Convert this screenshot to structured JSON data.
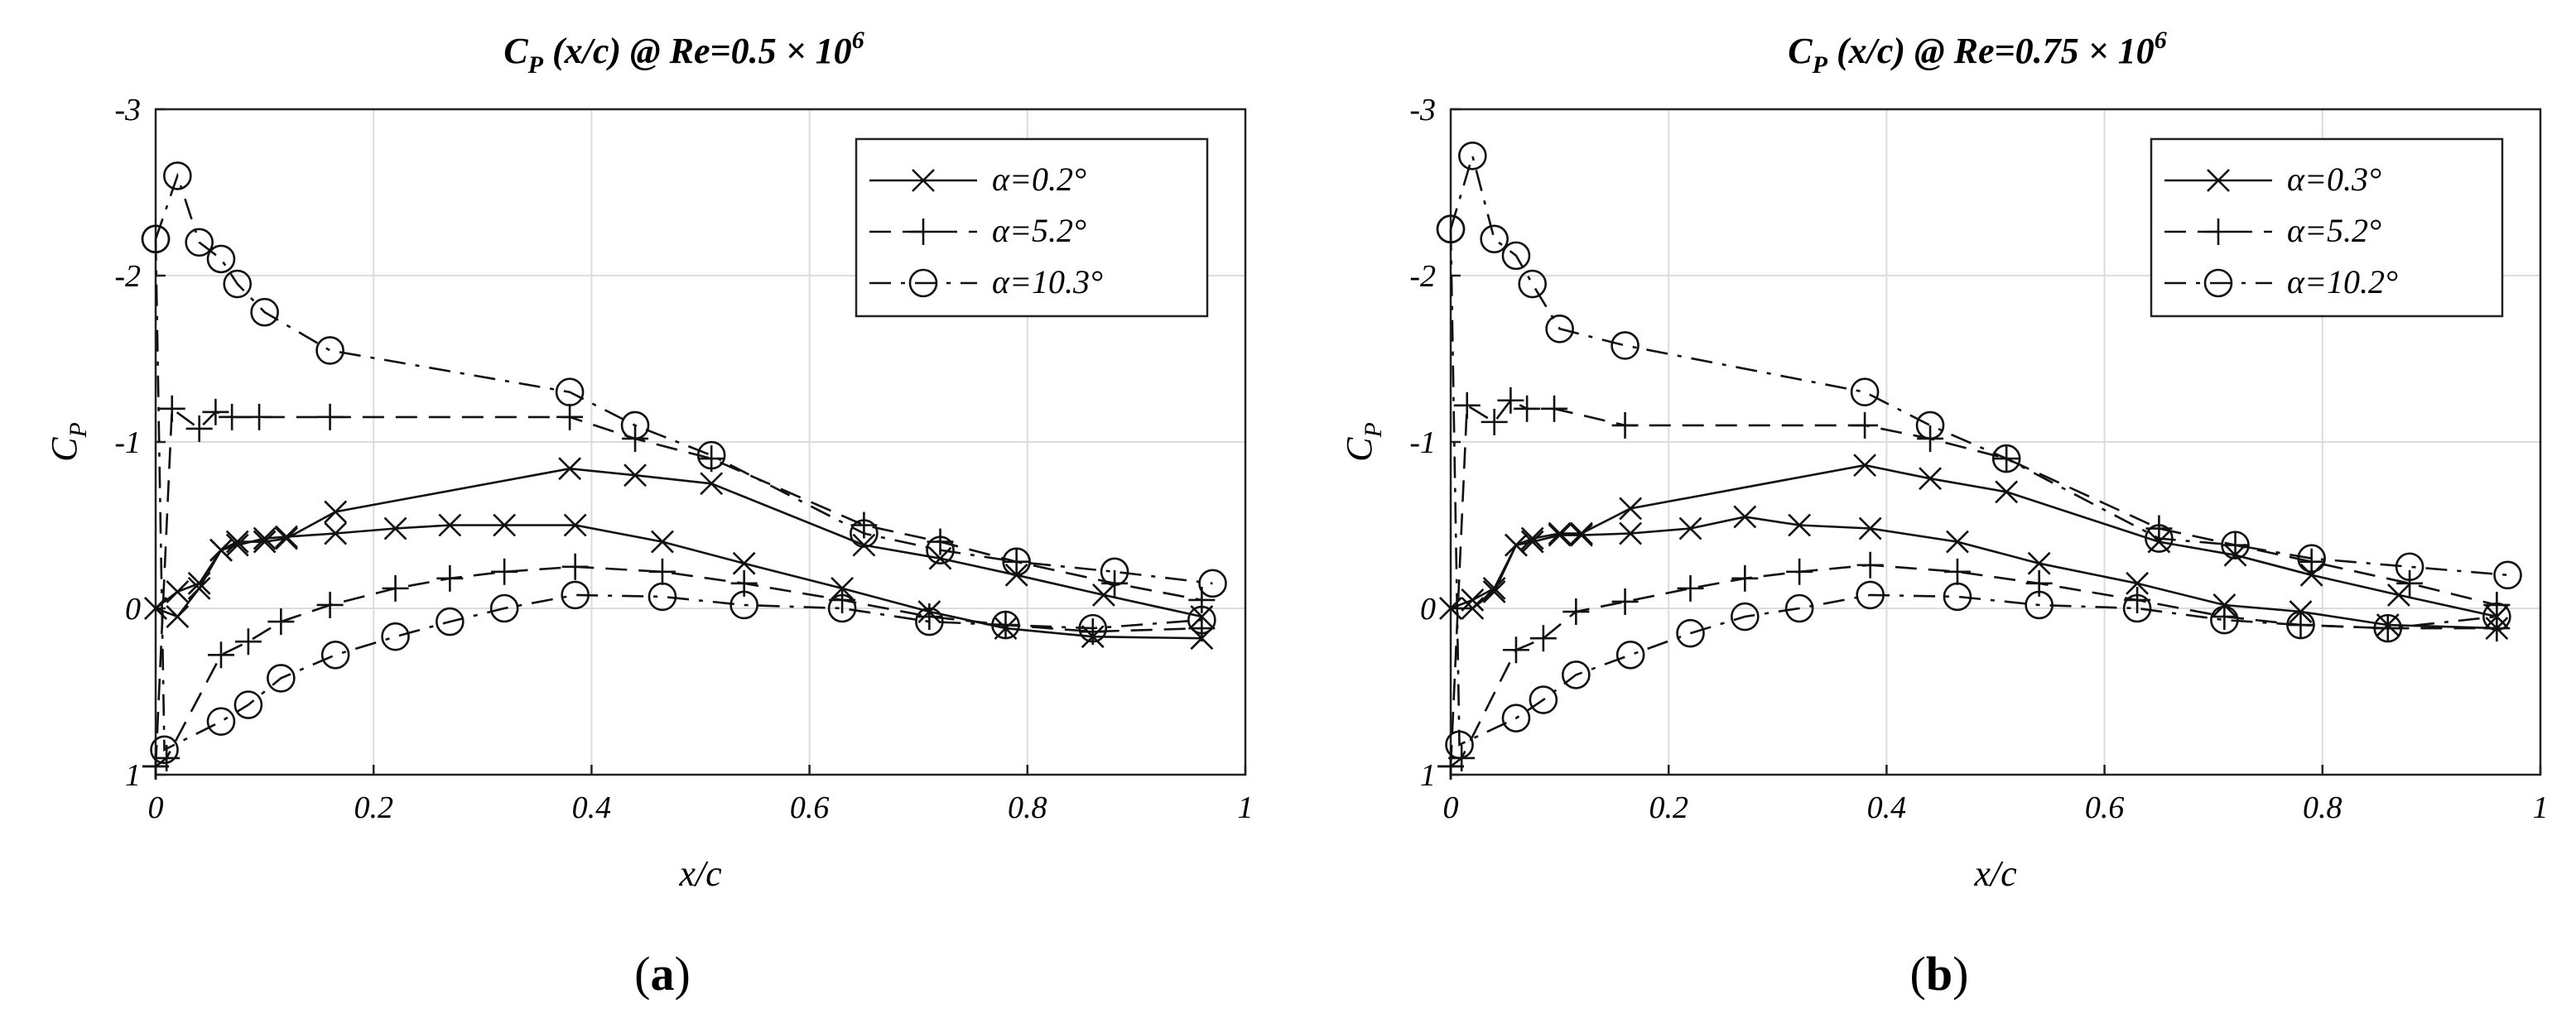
{
  "figure": {
    "panel_labels": [
      {
        "open": "(",
        "letter": "a",
        "close": ")"
      },
      {
        "open": "(",
        "letter": "b",
        "close": ")"
      }
    ]
  },
  "chart_data": [
    {
      "type": "line",
      "title": {
        "cp": "C",
        "p": "P",
        "mid": " (x/c) @ Re=0.5 × 10",
        "exp": "6"
      },
      "xlabel": "x/c",
      "ylabel": {
        "c": "C",
        "p": "P"
      },
      "xlim": [
        0,
        1
      ],
      "ylim": [
        1,
        -3
      ],
      "xticks": [
        "0",
        "0.2",
        "0.4",
        "0.6",
        "0.8",
        "1"
      ],
      "yticks": [
        "-3",
        "-2",
        "-1",
        "0",
        "1"
      ],
      "grid": true,
      "legend_position": "top-right",
      "series": [
        {
          "name": "α=0.2°",
          "marker": "x",
          "dash": "solid",
          "upper": {
            "x": [
              0.0,
              0.02,
              0.04,
              0.06,
              0.075,
              0.1,
              0.12,
              0.165,
              0.38,
              0.44,
              0.51,
              0.65,
              0.72,
              0.79,
              0.87,
              0.96
            ],
            "y": [
              0.0,
              -0.1,
              -0.15,
              -0.35,
              -0.4,
              -0.4,
              -0.42,
              -0.58,
              -0.84,
              -0.8,
              -0.75,
              -0.38,
              -0.3,
              -0.2,
              -0.08,
              0.05
            ]
          },
          "lower": {
            "x": [
              0.0,
              0.02,
              0.04,
              0.06,
              0.075,
              0.1,
              0.12,
              0.165,
              0.22,
              0.27,
              0.32,
              0.385,
              0.465,
              0.54,
              0.63,
              0.71,
              0.78,
              0.86,
              0.96
            ],
            "y": [
              0.0,
              0.05,
              -0.12,
              -0.35,
              -0.38,
              -0.42,
              -0.43,
              -0.45,
              -0.48,
              -0.5,
              -0.5,
              -0.5,
              -0.4,
              -0.27,
              -0.12,
              0.02,
              0.12,
              0.17,
              0.18
            ]
          }
        },
        {
          "name": "α=5.2°",
          "marker": "+",
          "dash": "dashed",
          "upper": {
            "x": [
              0.0,
              0.015,
              0.04,
              0.055,
              0.07,
              0.095,
              0.16,
              0.38,
              0.44,
              0.51,
              0.65,
              0.72,
              0.79,
              0.88,
              0.96
            ],
            "y": [
              0.95,
              -1.2,
              -1.08,
              -1.18,
              -1.15,
              -1.15,
              -1.15,
              -1.15,
              -1.02,
              -0.9,
              -0.5,
              -0.4,
              -0.28,
              -0.15,
              -0.05
            ]
          },
          "lower": {
            "x": [
              0.0,
              0.01,
              0.06,
              0.085,
              0.115,
              0.16,
              0.22,
              0.27,
              0.32,
              0.385,
              0.465,
              0.54,
              0.63,
              0.71,
              0.78,
              0.86,
              0.96
            ],
            "y": [
              0.95,
              0.9,
              0.28,
              0.2,
              0.08,
              -0.02,
              -0.12,
              -0.18,
              -0.22,
              -0.25,
              -0.22,
              -0.15,
              -0.05,
              0.05,
              0.1,
              0.14,
              0.12
            ]
          }
        },
        {
          "name": "α=10.3°",
          "marker": "o",
          "dash": "dashdot",
          "upper": {
            "x": [
              0.0,
              0.02,
              0.04,
              0.06,
              0.075,
              0.1,
              0.16,
              0.38,
              0.44,
              0.51,
              0.65,
              0.72,
              0.79,
              0.88,
              0.97
            ],
            "y": [
              -2.22,
              -2.6,
              -2.2,
              -2.1,
              -1.95,
              -1.78,
              -1.55,
              -1.3,
              -1.1,
              -0.92,
              -0.45,
              -0.35,
              -0.28,
              -0.22,
              -0.15
            ]
          },
          "lower": {
            "x": [
              0.0,
              0.008,
              0.06,
              0.085,
              0.115,
              0.165,
              0.22,
              0.27,
              0.32,
              0.385,
              0.465,
              0.54,
              0.63,
              0.71,
              0.78,
              0.86,
              0.96
            ],
            "y": [
              -2.22,
              0.85,
              0.68,
              0.58,
              0.42,
              0.28,
              0.17,
              0.08,
              0.0,
              -0.08,
              -0.07,
              -0.02,
              0.0,
              0.08,
              0.1,
              0.12,
              0.07
            ]
          }
        }
      ]
    },
    {
      "type": "line",
      "title": {
        "cp": "C",
        "p": "P",
        "mid": " (x/c) @ Re=0.75 × 10",
        "exp": "6"
      },
      "xlabel": "x/c",
      "ylabel": {
        "c": "C",
        "p": "P"
      },
      "xlim": [
        0,
        1
      ],
      "ylim": [
        1,
        -3
      ],
      "xticks": [
        "0",
        "0.2",
        "0.4",
        "0.6",
        "0.8",
        "1"
      ],
      "yticks": [
        "-3",
        "-2",
        "-1",
        "0",
        "1"
      ],
      "grid": true,
      "legend_position": "top-right",
      "series": [
        {
          "name": "α=0.3°",
          "marker": "x",
          "dash": "solid",
          "upper": {
            "x": [
              0.0,
              0.02,
              0.04,
              0.06,
              0.075,
              0.1,
              0.12,
              0.165,
              0.38,
              0.44,
              0.51,
              0.65,
              0.72,
              0.79,
              0.87,
              0.96
            ],
            "y": [
              0.0,
              -0.05,
              -0.12,
              -0.38,
              -0.42,
              -0.45,
              -0.45,
              -0.6,
              -0.86,
              -0.78,
              -0.7,
              -0.4,
              -0.32,
              -0.2,
              -0.08,
              0.05
            ]
          },
          "lower": {
            "x": [
              0.0,
              0.02,
              0.04,
              0.06,
              0.075,
              0.1,
              0.12,
              0.165,
              0.22,
              0.27,
              0.32,
              0.385,
              0.465,
              0.54,
              0.63,
              0.71,
              0.78,
              0.86,
              0.96
            ],
            "y": [
              0.0,
              0.0,
              -0.1,
              -0.38,
              -0.4,
              -0.44,
              -0.44,
              -0.45,
              -0.48,
              -0.55,
              -0.5,
              -0.48,
              -0.4,
              -0.27,
              -0.15,
              -0.02,
              0.02,
              0.1,
              0.12
            ]
          }
        },
        {
          "name": "α=5.2°",
          "marker": "+",
          "dash": "dashed",
          "upper": {
            "x": [
              0.0,
              0.015,
              0.04,
              0.055,
              0.07,
              0.095,
              0.16,
              0.38,
              0.44,
              0.51,
              0.65,
              0.72,
              0.79,
              0.88,
              0.96
            ],
            "y": [
              0.95,
              -1.22,
              -1.12,
              -1.25,
              -1.2,
              -1.2,
              -1.1,
              -1.1,
              -1.02,
              -0.9,
              -0.48,
              -0.38,
              -0.28,
              -0.15,
              -0.02
            ]
          },
          "lower": {
            "x": [
              0.0,
              0.01,
              0.06,
              0.085,
              0.115,
              0.16,
              0.22,
              0.27,
              0.32,
              0.385,
              0.465,
              0.54,
              0.63,
              0.71,
              0.78,
              0.86,
              0.96
            ],
            "y": [
              0.95,
              0.9,
              0.25,
              0.18,
              0.02,
              -0.04,
              -0.12,
              -0.18,
              -0.22,
              -0.26,
              -0.22,
              -0.15,
              -0.05,
              0.05,
              0.1,
              0.12,
              0.12
            ]
          }
        },
        {
          "name": "α=10.2°",
          "marker": "o",
          "dash": "dashdot",
          "upper": {
            "x": [
              0.0,
              0.02,
              0.04,
              0.06,
              0.075,
              0.1,
              0.16,
              0.38,
              0.44,
              0.51,
              0.65,
              0.72,
              0.79,
              0.88,
              0.97
            ],
            "y": [
              -2.28,
              -2.72,
              -2.22,
              -2.12,
              -1.95,
              -1.68,
              -1.58,
              -1.3,
              -1.1,
              -0.9,
              -0.42,
              -0.38,
              -0.3,
              -0.25,
              -0.2
            ]
          },
          "lower": {
            "x": [
              0.0,
              0.008,
              0.06,
              0.085,
              0.115,
              0.165,
              0.22,
              0.27,
              0.32,
              0.385,
              0.465,
              0.54,
              0.63,
              0.71,
              0.78,
              0.86,
              0.96
            ],
            "y": [
              -2.28,
              0.82,
              0.66,
              0.55,
              0.4,
              0.28,
              0.15,
              0.05,
              0.0,
              -0.08,
              -0.07,
              -0.02,
              0.0,
              0.07,
              0.1,
              0.12,
              0.05
            ]
          }
        }
      ]
    }
  ]
}
